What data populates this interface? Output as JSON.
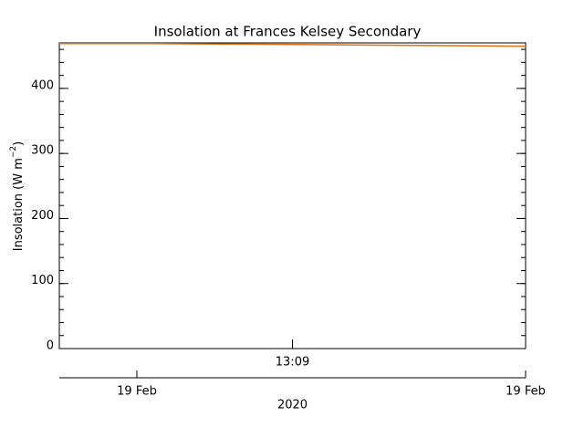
{
  "chart_data": {
    "type": "line",
    "title": "Insolation at Frances Kelsey Secondary",
    "ylabel": {
      "text": "Insolation (W m",
      "sup": "−2",
      "end": ")"
    },
    "values": [
      469,
      469,
      468,
      467,
      466,
      465
    ],
    "color": "#e07010",
    "ylim": [
      0,
      470
    ],
    "yticks": [
      0,
      100,
      200,
      300,
      400
    ],
    "xtick_labels": [
      "13:09"
    ],
    "date_ticks": [
      "19 Feb",
      "19 Feb"
    ],
    "date_axis_label": "2020"
  }
}
